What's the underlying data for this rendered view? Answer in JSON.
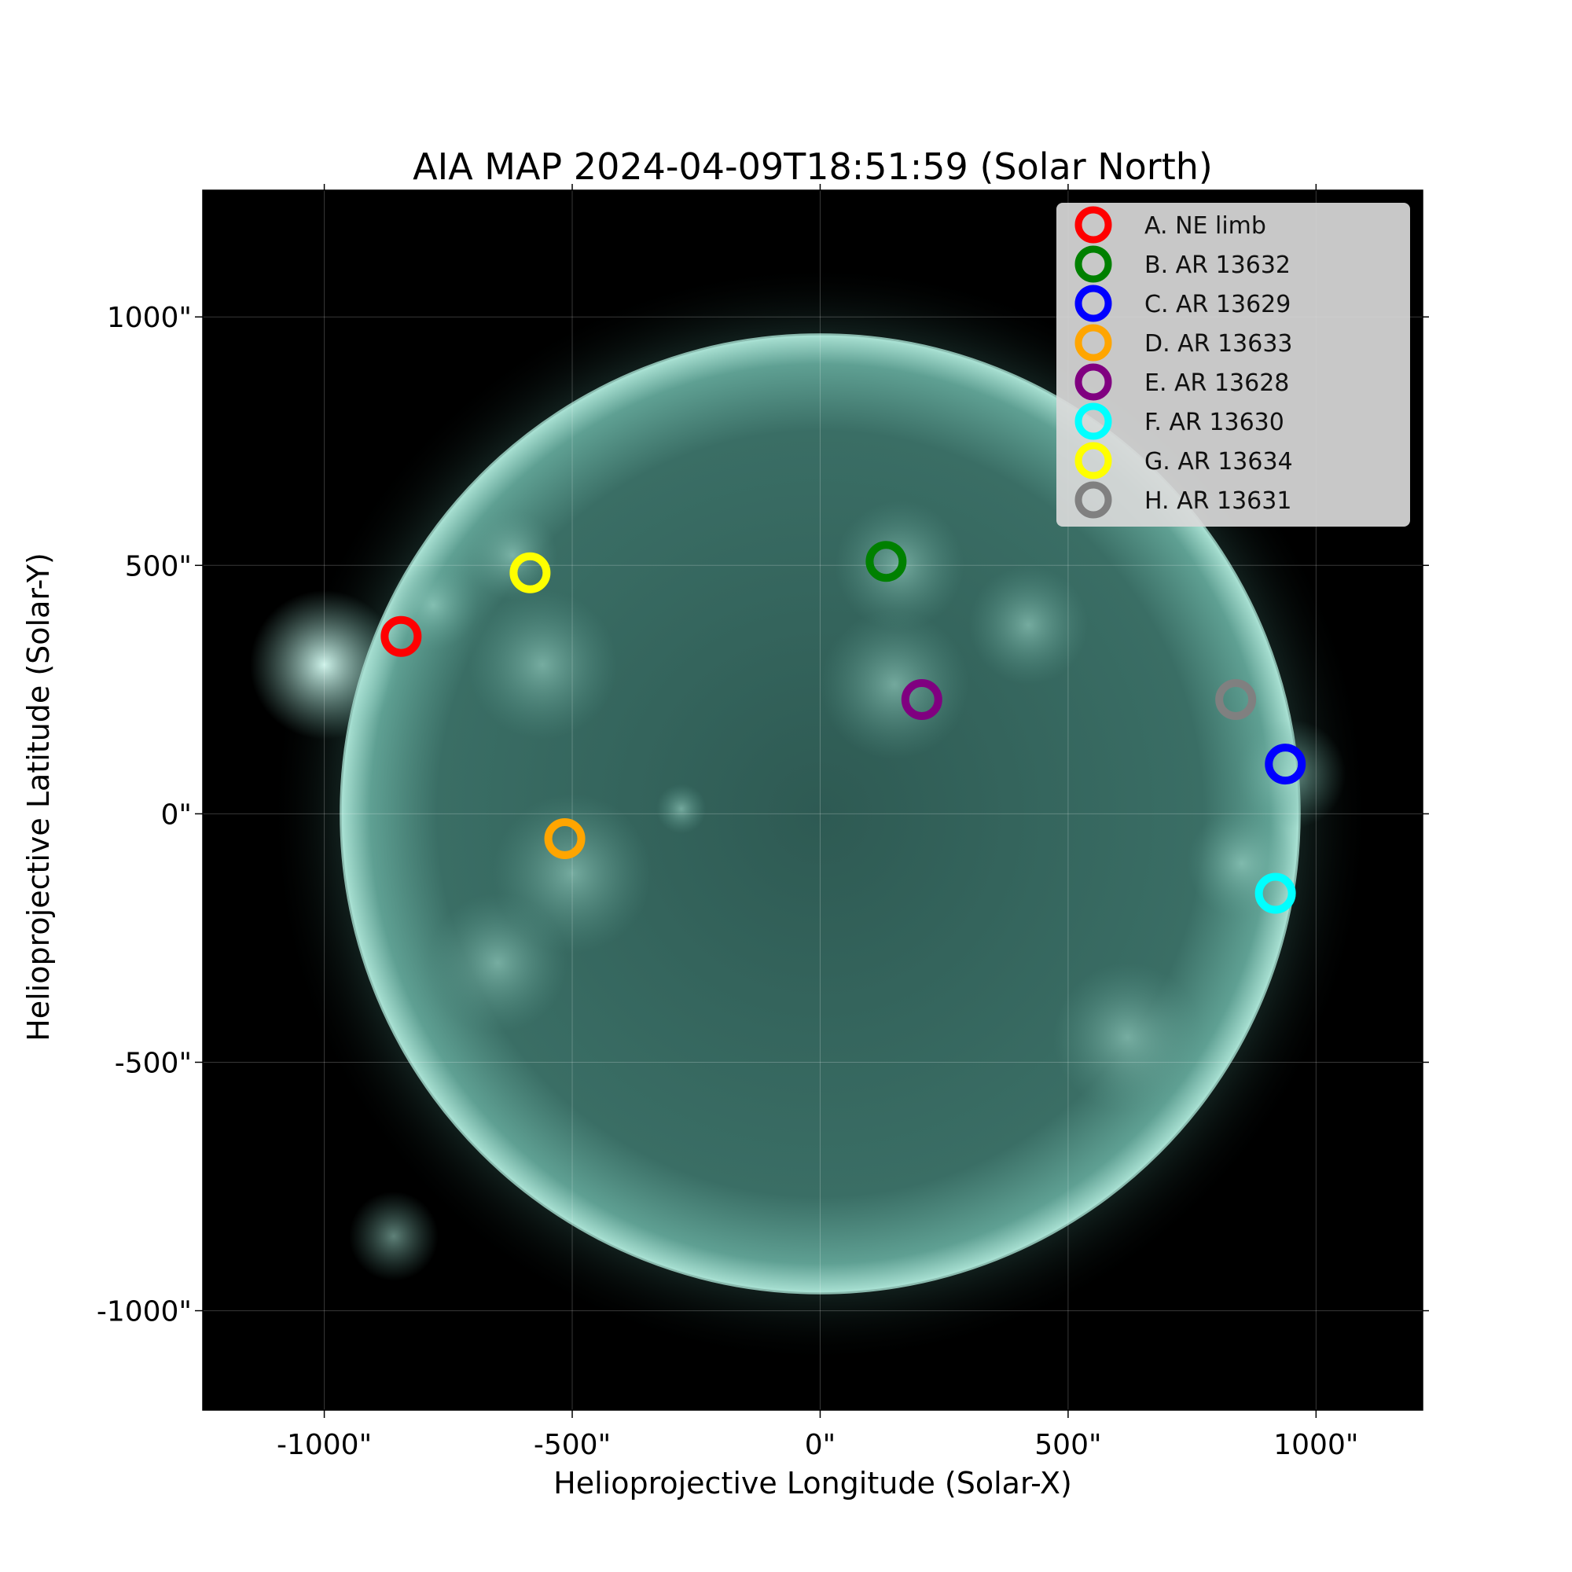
{
  "chart_data": {
    "type": "scatter",
    "title": "AIA MAP 2024-04-09T18:51:59 (Solar North)",
    "xlabel": "Helioprojective Longitude (Solar-X)",
    "ylabel": "Helioprojective Latitude (Solar-Y)",
    "xlim": [
      -1245,
      1215
    ],
    "ylim": [
      -1200,
      1255
    ],
    "xticks": [
      -1000,
      -500,
      0,
      500,
      1000
    ],
    "yticks": [
      -1000,
      -500,
      0,
      500,
      1000
    ],
    "xtick_labels": [
      "-1000\"",
      "-500\"",
      "0\"",
      "500\"",
      "1000\""
    ],
    "ytick_labels": [
      "-1000\"",
      "-500\"",
      "0\"",
      "500\"",
      "1000\""
    ],
    "grid": true,
    "legend_position": "upper right",
    "background": "#000000",
    "disk_color": "#3f7a70",
    "limb_color": "#a8e0d2",
    "solar_radius": 965,
    "series": [
      {
        "name": "A.  NE limb",
        "x": -845,
        "y": 357,
        "color": "#ff0000"
      },
      {
        "name": "B.  AR 13632",
        "x": 133,
        "y": 508,
        "color": "#008000"
      },
      {
        "name": "C.  AR 13629",
        "x": 938,
        "y": 100,
        "color": "#0000ff"
      },
      {
        "name": "D.  AR 13633",
        "x": -515,
        "y": -50,
        "color": "#ffa500"
      },
      {
        "name": "E.  AR 13628",
        "x": 205,
        "y": 230,
        "color": "#800080"
      },
      {
        "name": "F.  AR 13630",
        "x": 918,
        "y": -160,
        "color": "#00ffff"
      },
      {
        "name": "G.  AR 13634",
        "x": -585,
        "y": 485,
        "color": "#ffff00"
      },
      {
        "name": "H.  AR 13631",
        "x": 838,
        "y": 230,
        "color": "#808080"
      }
    ]
  }
}
